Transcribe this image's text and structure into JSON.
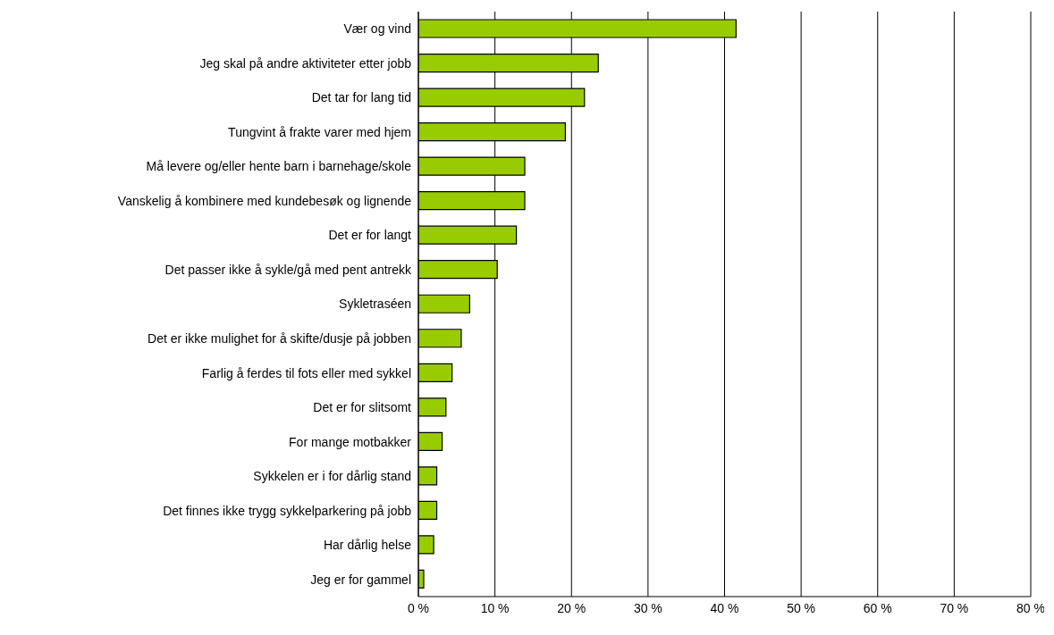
{
  "chart_data": {
    "type": "bar",
    "orientation": "horizontal",
    "categories": [
      "Vær og vind",
      "Jeg skal på andre aktiviteter etter jobb",
      "Det tar for lang tid",
      "Tungvint å frakte varer med hjem",
      "Må levere og/eller hente barn i barnehage/skole",
      "Vanskelig å kombinere med kundebesøk og lignende",
      "Det er for langt",
      "Det passer ikke å sykle/gå med pent antrekk",
      "Sykletraséen",
      "Det er ikke mulighet for å skifte/dusje på jobben",
      "Farlig å ferdes til fots eller med sykkel",
      "Det er for slitsomt",
      "For mange motbakker",
      "Sykkelen er i for dårlig stand",
      "Det finnes ikke trygg sykkelparkering på jobb",
      "Har dårlig helse",
      "Jeg er for gammel"
    ],
    "values": [
      41.5,
      23.5,
      21.7,
      19.2,
      13.9,
      13.9,
      12.8,
      10.3,
      6.7,
      5.6,
      4.4,
      3.6,
      3.1,
      2.4,
      2.4,
      2.0,
      0.7
    ],
    "color": "#99cc00",
    "xlim": [
      0,
      80
    ],
    "xticks": [
      {
        "value": 0,
        "label": "0 %"
      },
      {
        "value": 10,
        "label": "10 %"
      },
      {
        "value": 20,
        "label": "20 %"
      },
      {
        "value": 30,
        "label": "30 %"
      },
      {
        "value": 40,
        "label": "40 %"
      },
      {
        "value": 50,
        "label": "50 %"
      },
      {
        "value": 60,
        "label": "60 %"
      },
      {
        "value": 70,
        "label": "70 %"
      },
      {
        "value": 80,
        "label": "80 %"
      }
    ],
    "grid": "x"
  }
}
